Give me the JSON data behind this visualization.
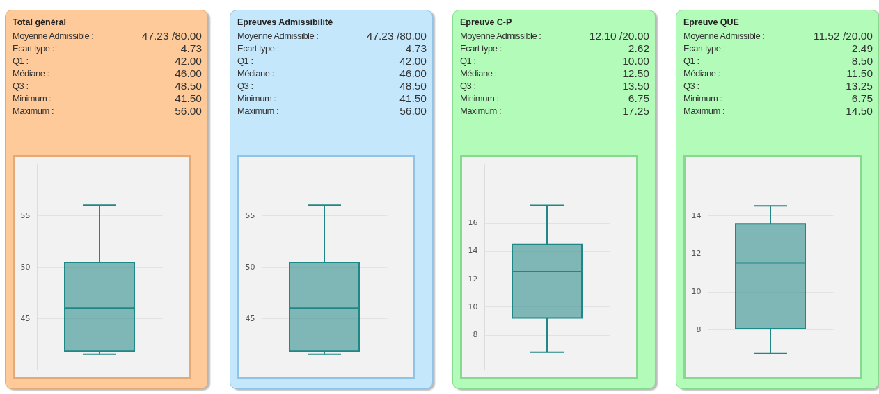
{
  "chart_data": [
    {
      "type": "box",
      "title": "Total général",
      "categories": [
        null
      ],
      "ylim": [
        40,
        60
      ],
      "yticks": [
        45,
        50,
        55
      ],
      "grid": "y",
      "tick_labels": "y",
      "series": [
        {
          "color": "#1f8785",
          "boxes": [
            {
              "low": 41.5,
              "q1": 41.8,
              "median": 46,
              "q3": 50.4,
              "high": 56
            }
          ]
        }
      ],
      "annotations": [
        "Moyenne Admissible :",
        "47.23 /80.00",
        "Ecart type :",
        "4.73",
        "Q1 :",
        "42.00",
        "Médiane :",
        "46.00",
        "Q3 :",
        "48.50",
        "Minimum :",
        "41.50",
        "Maximum :",
        "56.00"
      ]
    },
    {
      "type": "box",
      "title": "Epreuves Admissibilité",
      "categories": [
        null
      ],
      "ylim": [
        40,
        60
      ],
      "yticks": [
        45,
        50,
        55
      ],
      "grid": "y",
      "tick_labels": "y",
      "series": [
        {
          "color": "#1f8785",
          "boxes": [
            {
              "low": 41.5,
              "q1": 41.8,
              "median": 46,
              "q3": 50.4,
              "high": 56
            }
          ]
        }
      ],
      "annotations": [
        "Moyenne Admissible :",
        "47.23 /80.00",
        "Ecart type :",
        "4.73",
        "Q1 :",
        "42.00",
        "Médiane :",
        "46.00",
        "Q3 :",
        "48.50",
        "Minimum :",
        "41.50",
        "Maximum :",
        "56.00"
      ]
    },
    {
      "type": "box",
      "title": "Epreuve C-P",
      "categories": [
        null
      ],
      "ylim": [
        5.5,
        20.2
      ],
      "yticks": [
        8,
        10,
        12,
        14,
        16
      ],
      "grid": "y",
      "tick_labels": "y",
      "series": [
        {
          "color": "#1f8785",
          "boxes": [
            {
              "low": 6.75,
              "q1": 9.2,
              "median": 12.5,
              "q3": 14.45,
              "high": 17.25
            }
          ]
        }
      ],
      "annotations": [
        "Moyenne Admissible :",
        "12.10 /20.00",
        "Ecart type :",
        "2.62",
        "Q1 :",
        "10.00",
        "Médiane :",
        "12.50",
        "Q3 :",
        "13.50",
        "Minimum :",
        "6.75",
        "Maximum :",
        "17.25"
      ]
    },
    {
      "type": "box",
      "title": "Epreuve QUE",
      "categories": [
        null
      ],
      "ylim": [
        5.9,
        16.7
      ],
      "yticks": [
        8,
        10,
        12,
        14
      ],
      "grid": "y",
      "tick_labels": "y",
      "series": [
        {
          "color": "#1f8785",
          "boxes": [
            {
              "low": 6.75,
              "q1": 8.05,
              "median": 11.5,
              "q3": 13.55,
              "high": 14.5
            }
          ]
        }
      ],
      "annotations": [
        "Moyenne Admissible :",
        "11.52 /20.00",
        "Ecart type :",
        "2.49",
        "Q1 :",
        "8.50",
        "Médiane :",
        "11.50",
        "Q3 :",
        "13.25",
        "Minimum :",
        "6.75",
        "Maximum :",
        "14.50"
      ]
    }
  ]
}
